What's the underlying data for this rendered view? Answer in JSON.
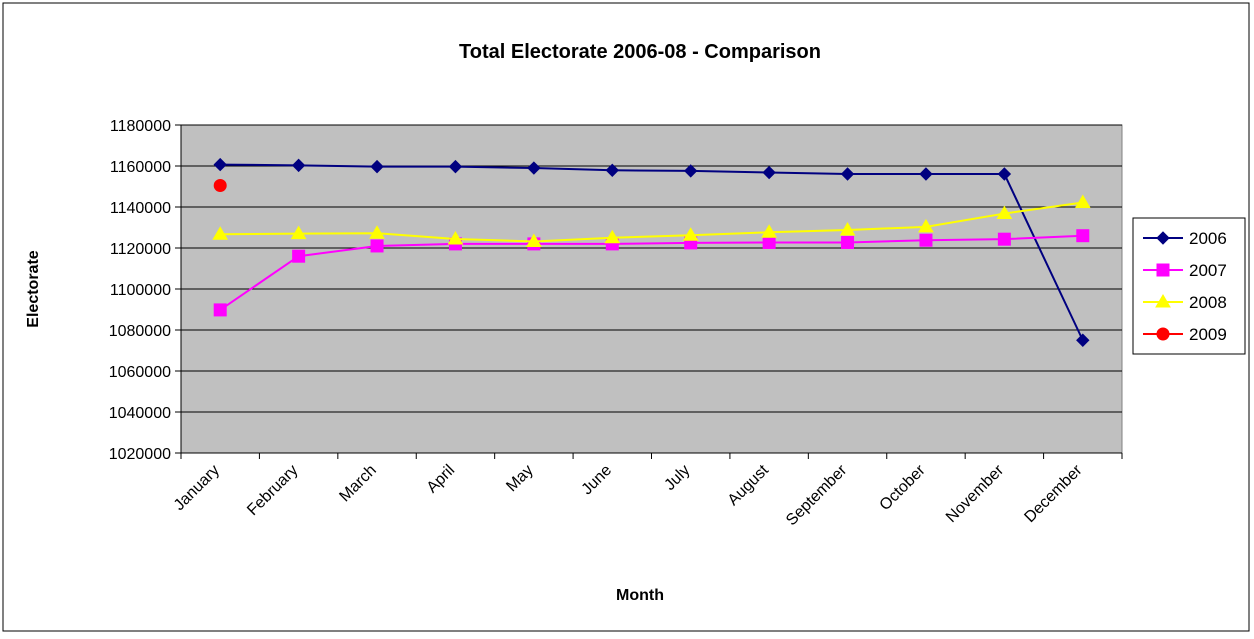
{
  "chart_data": {
    "type": "line",
    "title": "Total Electorate 2006-08 - Comparison",
    "xlabel": "Month",
    "ylabel": "Electorate",
    "ylim": [
      1020000,
      1180000
    ],
    "yticks": [
      1020000,
      1040000,
      1060000,
      1080000,
      1100000,
      1120000,
      1140000,
      1160000,
      1180000
    ],
    "categories": [
      "January",
      "February",
      "March",
      "April",
      "May",
      "June",
      "July",
      "August",
      "September",
      "October",
      "November",
      "December"
    ],
    "grid": "horizontal",
    "legend_position": "right",
    "plot_background": "#c0c0c0",
    "series": [
      {
        "name": "2006",
        "color": "#000080",
        "marker": "diamond",
        "values": [
          1160700,
          1160300,
          1159700,
          1159700,
          1159000,
          1157900,
          1157600,
          1156800,
          1156100,
          1156100,
          1156100,
          1075000
        ]
      },
      {
        "name": "2007",
        "color": "#ff00ff",
        "marker": "square",
        "values": [
          1089800,
          1116000,
          1121000,
          1122000,
          1122000,
          1122000,
          1122500,
          1122700,
          1122700,
          1123800,
          1124300,
          1126000
        ]
      },
      {
        "name": "2008",
        "color": "#ffff00",
        "marker": "triangle",
        "values": [
          1126700,
          1127000,
          1127200,
          1124400,
          1123200,
          1125000,
          1126200,
          1127700,
          1128800,
          1130300,
          1136800,
          1142200
        ]
      },
      {
        "name": "2009",
        "color": "#ff0000",
        "marker": "circle",
        "values": [
          1150500,
          null,
          null,
          null,
          null,
          null,
          null,
          null,
          null,
          null,
          null,
          null
        ]
      }
    ]
  }
}
